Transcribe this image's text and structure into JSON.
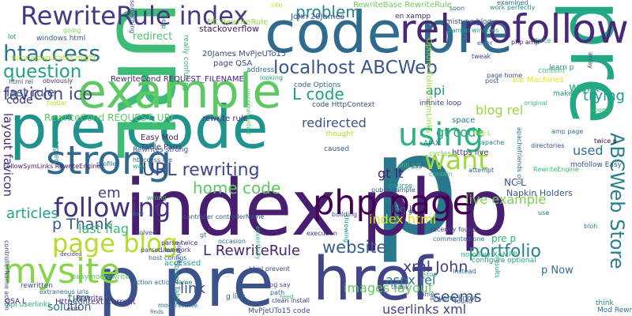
{
  "words": [
    {
      "text": "p",
      "color": "#2a788e"
    },
    {
      "text": "index php",
      "color": "#481f70"
    },
    {
      "text": "code pre",
      "color": "#2f6b8e"
    },
    {
      "text": "pre code",
      "color": "#20938c"
    },
    {
      "text": "URL",
      "color": "#3cbc75"
    },
    {
      "text": "pre",
      "color": "#22a884"
    },
    {
      "text": "p pre",
      "color": "#3b528b"
    },
    {
      "text": "example",
      "color": "#5ec962"
    },
    {
      "text": "href",
      "color": "#414487"
    },
    {
      "text": "rel nofollow",
      "color": "#482878"
    },
    {
      "text": "RewriteRule index",
      "color": "#443983"
    },
    {
      "text": "strong",
      "color": "#31688e"
    },
    {
      "text": "php page",
      "color": "#440154"
    },
    {
      "text": "mysite",
      "color": "#86d549"
    },
    {
      "text": "using",
      "color": "#2eb37c"
    },
    {
      "text": "localhost ABCWeb",
      "color": "#39568c"
    },
    {
      "text": "ABCWeb Store",
      "color": "#27808e"
    },
    {
      "text": "page blog",
      "color": "#b5de2b"
    },
    {
      "text": "following",
      "color": "#46327e"
    },
    {
      "text": "want",
      "color": "#9fda3a"
    },
    {
      "text": "htaccess",
      "color": "#2c728e"
    },
    {
      "text": "question",
      "color": "#1fa187"
    },
    {
      "text": "favicon ico",
      "color": "#3f4788"
    },
    {
      "text": "problem",
      "color": "#25848e"
    },
    {
      "text": "L code",
      "color": "#1f9e89"
    },
    {
      "text": "URL rewriting",
      "color": "#3e4989"
    },
    {
      "text": "home code",
      "color": "#5ec962"
    },
    {
      "text": "website",
      "color": "#355f8d"
    },
    {
      "text": "portfolio",
      "color": "#26828e"
    },
    {
      "text": "link",
      "color": "#3b528b"
    },
    {
      "text": "seems",
      "color": "#3d4e8a"
    },
    {
      "text": "xml John",
      "color": "#433e85"
    },
    {
      "text": "L RewriteRule",
      "color": "#482475"
    },
    {
      "text": "p Thank",
      "color": "#38598c"
    },
    {
      "text": "last flag",
      "color": "#3bbb75"
    },
    {
      "text": "images layout",
      "color": "#63cb5f"
    },
    {
      "text": "index html",
      "color": "#d8e219"
    },
    {
      "text": "userlinks xml",
      "color": "#404688"
    },
    {
      "text": "aspx rel",
      "color": "#2a768e"
    },
    {
      "text": "live example",
      "color": "#7ad151"
    },
    {
      "text": "trying",
      "color": "#1e9b8a"
    },
    {
      "text": "work",
      "color": "#29af7f"
    },
    {
      "text": "last rule",
      "color": "#3a548c"
    },
    {
      "text": "articles",
      "color": "#20a386"
    },
    {
      "text": "used",
      "color": "#2d708e"
    },
    {
      "text": "blog rel",
      "color": "#95d840"
    },
    {
      "text": "api",
      "color": "#21918c"
    },
    {
      "text": "gt code",
      "color": "#21a685"
    },
    {
      "text": "gt lt",
      "color": "#481a6c"
    },
    {
      "text": "redirected",
      "color": "#39558c"
    },
    {
      "text": "solution",
      "color": "#2e6e8e"
    },
    {
      "text": "turn",
      "color": "#238a8d"
    },
    {
      "text": "em",
      "color": "#424186"
    },
    {
      "text": "blog L",
      "color": "#31668e"
    },
    {
      "text": "pre p",
      "color": "#2ab07f"
    },
    {
      "text": "p Now",
      "color": "#2d718e"
    },
    {
      "text": "layout favicon",
      "color": "#472c7a"
    },
    {
      "text": "code",
      "color": "#453882"
    },
    {
      "text": "redirect",
      "color": "#4cc26c"
    },
    {
      "text": "Easy Mod",
      "color": "#482576"
    },
    {
      "text": "Table Pans",
      "color": "#453781"
    },
    {
      "text": "rewrite rule",
      "color": "#472d7b"
    },
    {
      "text": "HttpContext Current",
      "color": "#46307e"
    },
    {
      "text": "NC L",
      "color": "#3b528b"
    },
    {
      "text": "Napkin Holders",
      "color": "#38598c"
    },
    {
      "text": "stackoverflow",
      "color": "#481b6d"
    },
    {
      "text": "RewriteCond REQUEST_FILENAME",
      "color": "#482475"
    },
    {
      "text": "RewriteCond REQUEST_URI",
      "color": "#5ec962"
    },
    {
      "text": "NC RewriteRule",
      "color": "#95d840"
    },
    {
      "text": "20James MvPjeUTo15",
      "color": "#3e4a89"
    },
    {
      "text": "page QSA",
      "color": "#404588"
    },
    {
      "text": "John 20James",
      "color": "#3b528b"
    },
    {
      "text": "RewriteBase RewriteRule",
      "color": "#6ece58"
    },
    {
      "text": "en xampp",
      "color": "#472a7a"
    },
    {
      "text": "mistype blog",
      "color": "#3c4f8a"
    },
    {
      "text": "windows html",
      "color": "#365c8d"
    },
    {
      "text": "tutorialduplicates might",
      "color": "#b5de2b"
    },
    {
      "text": "html rel",
      "color": "#3c508b"
    },
    {
      "text": "obviously",
      "color": "#472e7c"
    },
    {
      "text": "foobar",
      "color": "#c2df23"
    },
    {
      "text": "going",
      "color": "#7fd34e"
    },
    {
      "text": "lot",
      "color": "#2a778e"
    },
    {
      "text": "address",
      "color": "#2e6f8e"
    },
    {
      "text": "really confusing",
      "color": "#35b779"
    },
    {
      "text": "code Options",
      "color": "#306a8e"
    },
    {
      "text": "code HttpContext",
      "color": "#3c4f8a"
    },
    {
      "text": "Options FollowSymLinks",
      "color": "#a2da37"
    },
    {
      "text": "Ice Machines",
      "color": "#e5e419"
    },
    {
      "text": "content",
      "color": "#46c06f"
    },
    {
      "text": "learn p",
      "color": "#23888e"
    },
    {
      "text": "make",
      "color": "#1f998a"
    },
    {
      "text": "infinite loop",
      "color": "#404688"
    },
    {
      "text": "cycles p",
      "color": "#7fd34e"
    },
    {
      "text": "space",
      "color": "#287d8e"
    },
    {
      "text": "thought",
      "color": "#b8de29"
    },
    {
      "text": "caused",
      "color": "#355e8d"
    },
    {
      "text": "https live",
      "color": "#433d84"
    },
    {
      "text": "AJAX",
      "color": "#2c738e"
    },
    {
      "text": "still got",
      "color": "#4ac16d"
    },
    {
      "text": "mofollow Easy",
      "color": "#39558c"
    },
    {
      "text": "twice p",
      "color": "#450559"
    },
    {
      "text": "amp page",
      "color": "#2c728e"
    },
    {
      "text": "directories",
      "color": "#3a538b"
    },
    {
      "text": "flag L",
      "color": "#a8db34"
    },
    {
      "text": "Rewrites strong",
      "color": "#39568c"
    },
    {
      "text": "htaccess file",
      "color": "#365d8d"
    },
    {
      "text": "profile",
      "color": "#2e6f8e"
    },
    {
      "text": "FollowSymLinks RewriteEngine",
      "color": "#481769"
    },
    {
      "text": "way",
      "color": "#2ab07f"
    },
    {
      "text": "controller controllerName",
      "color": "#39568c"
    },
    {
      "text": "course",
      "color": "#1fa088"
    },
    {
      "text": "public sample",
      "color": "#3a548c"
    },
    {
      "text": "css",
      "color": "#2f6c8e"
    },
    {
      "text": "contain",
      "color": "#3aba76"
    },
    {
      "text": "attempt",
      "color": "#35608d"
    },
    {
      "text": "RewriteEngine",
      "color": "#3bbb75"
    },
    {
      "text": "recently found",
      "color": "#414487"
    },
    {
      "text": "commented one",
      "color": "#2b748e"
    },
    {
      "text": "stop",
      "color": "#2ab07f"
    },
    {
      "text": "nofollow XAMPP",
      "color": "#2db27d"
    },
    {
      "text": "configure optional",
      "color": "#20a386"
    },
    {
      "text": "parse twice",
      "color": "#472a7a"
    },
    {
      "text": "rules work",
      "color": "#453581"
    },
    {
      "text": "host configs",
      "color": "#31678e"
    },
    {
      "text": "parsed even",
      "color": "#3d4d8a"
    },
    {
      "text": "accessed",
      "color": "#21a585"
    },
    {
      "text": "rewritten",
      "color": "#3b528b"
    },
    {
      "text": "extraneous urls",
      "color": "#2f6b8e"
    },
    {
      "text": "api userlinks",
      "color": "#25ab82"
    },
    {
      "text": "Steam Table",
      "color": "#1f948c"
    },
    {
      "text": "action actionName",
      "color": "#2d708e"
    },
    {
      "text": "mod_rewrite",
      "color": "#2a768e"
    },
    {
      "text": "clean install",
      "color": "#424186"
    },
    {
      "text": "MvPjeUTo15 code",
      "color": "#3c4f8a"
    },
    {
      "text": "g link",
      "color": "#355e8d"
    },
    {
      "text": "came",
      "color": "#3c4f8a"
    },
    {
      "text": "anyone know",
      "color": "#32658e"
    },
    {
      "text": "Instead",
      "color": "#2b748e"
    },
    {
      "text": "think",
      "color": "#24868e"
    },
    {
      "text": "Mod Rewrite",
      "color": "#2a768e"
    },
    {
      "text": "exist",
      "color": "#482173"
    },
    {
      "text": "finds",
      "color": "#2c728e"
    },
    {
      "text": "need",
      "color": "#35b779"
    },
    {
      "text": "easymodrewrite",
      "color": "#58c765"
    },
    {
      "text": "QSA L",
      "color": "#482475"
    },
    {
      "text": "thank",
      "color": "#3a548c"
    },
    {
      "text": "found",
      "color": "#414487"
    },
    {
      "text": "blog say",
      "color": "#3f4788"
    },
    {
      "text": "path",
      "color": "#31668e"
    },
    {
      "text": "results",
      "color": "#1f9f88"
    },
    {
      "text": "use",
      "color": "#2a778e"
    },
    {
      "text": "bloh",
      "color": "#2a788e"
    },
    {
      "text": "building",
      "color": "#3c4f8a"
    },
    {
      "text": "throwing",
      "color": "#21918c"
    },
    {
      "text": "occasion",
      "color": "#2e6e8e"
    },
    {
      "text": "fore",
      "color": "#2a788e"
    },
    {
      "text": "wrong",
      "color": "#43bf71"
    },
    {
      "text": "decided",
      "color": "#443a83"
    },
    {
      "text": "solved",
      "color": "#3b528b"
    },
    {
      "text": "execution",
      "color": "#46327e"
    },
    {
      "text": "Rewrite",
      "color": "#482878"
    },
    {
      "text": "examined",
      "color": "#2f6c8e"
    },
    {
      "text": "work perfectly",
      "color": "#21918c"
    },
    {
      "text": "soon",
      "color": "#2c718e"
    },
    {
      "text": "page home",
      "color": "#3a538b"
    },
    {
      "text": "error",
      "color": "#355f8d"
    },
    {
      "text": "xampp windows",
      "color": "#1fa187"
    },
    {
      "text": "tweak",
      "color": "#404588"
    },
    {
      "text": "force",
      "color": "#2eb37c"
    },
    {
      "text": "post",
      "color": "#39568c"
    },
    {
      "text": "original",
      "color": "#3dbc74"
    },
    {
      "text": "array",
      "color": "#3a538b"
    },
    {
      "text": "people",
      "color": "#37b878"
    },
    {
      "text": "apachefriends org",
      "color": "#2c728e"
    },
    {
      "text": "php amp",
      "color": "#481a6c"
    },
    {
      "text": "help",
      "color": "#2a768e"
    },
    {
      "text": "something",
      "color": "#39568c"
    },
    {
      "text": "site",
      "color": "#c2df23"
    },
    {
      "text": "looking",
      "color": "#1fa187"
    },
    {
      "text": "uncommented",
      "color": "#46c06f"
    },
    {
      "text": "apache",
      "color": "#23888e"
    },
    {
      "text": "html prevent",
      "color": "#3f4788"
    },
    {
      "text": "essentially",
      "color": "#36b677"
    },
    {
      "text": "bloh rel",
      "color": "#3b528b"
    },
    {
      "text": "controllerName action",
      "color": "#414487"
    },
    {
      "text": "org en",
      "color": "#1e9c89"
    },
    {
      "text": "gt",
      "color": "#2c728e"
    },
    {
      "text": "go",
      "color": "#433e85"
    }
  ]
}
